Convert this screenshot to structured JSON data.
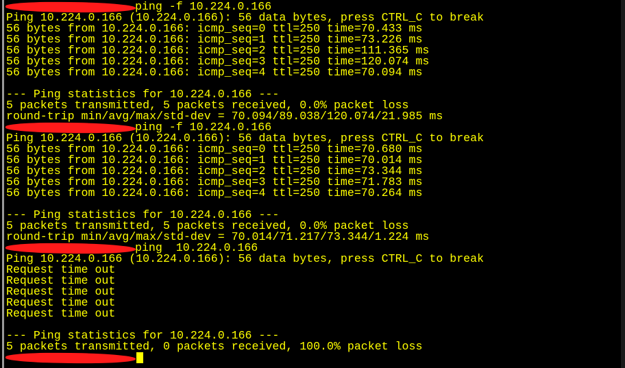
{
  "terminal": {
    "text_color": "#ffff00",
    "background": "#000000",
    "redaction_color": "#ff1a1a",
    "lines": [
      {
        "type": "prompt",
        "command": "ping -f 10.224.0.166"
      },
      {
        "type": "output",
        "text": "Ping 10.224.0.166 (10.224.0.166): 56 data bytes, press CTRL_C to break"
      },
      {
        "type": "output",
        "text": "56 bytes from 10.224.0.166: icmp_seq=0 ttl=250 time=70.433 ms"
      },
      {
        "type": "output",
        "text": "56 bytes from 10.224.0.166: icmp_seq=1 ttl=250 time=73.226 ms"
      },
      {
        "type": "output",
        "text": "56 bytes from 10.224.0.166: icmp_seq=2 ttl=250 time=111.365 ms"
      },
      {
        "type": "output",
        "text": "56 bytes from 10.224.0.166: icmp_seq=3 ttl=250 time=120.074 ms"
      },
      {
        "type": "output",
        "text": "56 bytes from 10.224.0.166: icmp_seq=4 ttl=250 time=70.094 ms"
      },
      {
        "type": "output",
        "text": ""
      },
      {
        "type": "output",
        "text": "--- Ping statistics for 10.224.0.166 ---"
      },
      {
        "type": "output",
        "text": "5 packets transmitted, 5 packets received, 0.0% packet loss"
      },
      {
        "type": "output",
        "text": "round-trip min/avg/max/std-dev = 70.094/89.038/120.074/21.985 ms"
      },
      {
        "type": "prompt",
        "command": "ping -f 10.224.0.166"
      },
      {
        "type": "output",
        "text": "Ping 10.224.0.166 (10.224.0.166): 56 data bytes, press CTRL_C to break"
      },
      {
        "type": "output",
        "text": "56 bytes from 10.224.0.166: icmp_seq=0 ttl=250 time=70.680 ms"
      },
      {
        "type": "output",
        "text": "56 bytes from 10.224.0.166: icmp_seq=1 ttl=250 time=70.014 ms"
      },
      {
        "type": "output",
        "text": "56 bytes from 10.224.0.166: icmp_seq=2 ttl=250 time=73.344 ms"
      },
      {
        "type": "output",
        "text": "56 bytes from 10.224.0.166: icmp_seq=3 ttl=250 time=71.783 ms"
      },
      {
        "type": "output",
        "text": "56 bytes from 10.224.0.166: icmp_seq=4 ttl=250 time=70.264 ms"
      },
      {
        "type": "output",
        "text": ""
      },
      {
        "type": "output",
        "text": "--- Ping statistics for 10.224.0.166 ---"
      },
      {
        "type": "output",
        "text": "5 packets transmitted, 5 packets received, 0.0% packet loss"
      },
      {
        "type": "output",
        "text": "round-trip min/avg/max/std-dev = 70.014/71.217/73.344/1.224 ms"
      },
      {
        "type": "prompt",
        "command": "ping  10.224.0.166"
      },
      {
        "type": "output",
        "text": "Ping 10.224.0.166 (10.224.0.166): 56 data bytes, press CTRL_C to break"
      },
      {
        "type": "output",
        "text": "Request time out"
      },
      {
        "type": "output",
        "text": "Request time out"
      },
      {
        "type": "output",
        "text": "Request time out"
      },
      {
        "type": "output",
        "text": "Request time out"
      },
      {
        "type": "output",
        "text": "Request time out"
      },
      {
        "type": "output",
        "text": ""
      },
      {
        "type": "output",
        "text": "--- Ping statistics for 10.224.0.166 ---"
      },
      {
        "type": "output",
        "text": "5 packets transmitted, 0 packets received, 100.0% packet loss"
      },
      {
        "type": "prompt",
        "command": "",
        "cursor": true
      }
    ]
  }
}
